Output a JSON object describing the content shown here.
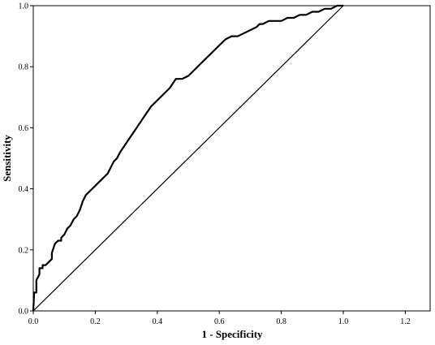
{
  "chart_data": {
    "type": "line",
    "title": "",
    "xlabel": "1 - Specificity",
    "ylabel": "Sensitivity",
    "xlim": [
      0,
      1.28
    ],
    "ylim": [
      0,
      1.0
    ],
    "x_ticks": [
      "0.0",
      "0.2",
      "0.4",
      "0.6",
      "0.8",
      "1.0",
      "1.2"
    ],
    "y_ticks": [
      "0.0",
      "0.2",
      "0.4",
      "0.6",
      "0.8",
      "1.0"
    ],
    "grid": false,
    "legend": "none",
    "series": [
      {
        "role": "roc-curve",
        "color": "#000000",
        "x": [
          0.0,
          0.003,
          0.01,
          0.01,
          0.02,
          0.02,
          0.03,
          0.03,
          0.04,
          0.05,
          0.06,
          0.06,
          0.07,
          0.08,
          0.09,
          0.09,
          0.1,
          0.11,
          0.12,
          0.13,
          0.14,
          0.15,
          0.16,
          0.17,
          0.18,
          0.19,
          0.2,
          0.22,
          0.24,
          0.25,
          0.26,
          0.27,
          0.28,
          0.3,
          0.32,
          0.34,
          0.36,
          0.38,
          0.4,
          0.42,
          0.44,
          0.46,
          0.48,
          0.5,
          0.52,
          0.54,
          0.55,
          0.56,
          0.57,
          0.58,
          0.6,
          0.62,
          0.64,
          0.66,
          0.68,
          0.7,
          0.72,
          0.73,
          0.74,
          0.76,
          0.78,
          0.8,
          0.82,
          0.84,
          0.86,
          0.88,
          0.9,
          0.92,
          0.94,
          0.96,
          0.98,
          1.0
        ],
        "y": [
          0.0,
          0.06,
          0.06,
          0.1,
          0.12,
          0.14,
          0.14,
          0.15,
          0.15,
          0.16,
          0.17,
          0.19,
          0.22,
          0.23,
          0.23,
          0.24,
          0.25,
          0.27,
          0.28,
          0.3,
          0.31,
          0.33,
          0.36,
          0.38,
          0.39,
          0.4,
          0.41,
          0.43,
          0.45,
          0.47,
          0.49,
          0.5,
          0.52,
          0.55,
          0.58,
          0.61,
          0.64,
          0.67,
          0.69,
          0.71,
          0.73,
          0.76,
          0.76,
          0.77,
          0.79,
          0.81,
          0.82,
          0.83,
          0.84,
          0.85,
          0.87,
          0.89,
          0.9,
          0.9,
          0.91,
          0.92,
          0.93,
          0.94,
          0.94,
          0.95,
          0.95,
          0.95,
          0.96,
          0.96,
          0.97,
          0.97,
          0.98,
          0.98,
          0.99,
          0.99,
          1.0,
          1.0
        ]
      },
      {
        "role": "reference-line",
        "color": "#000000",
        "x": [
          0.0,
          1.0
        ],
        "y": [
          0.0,
          1.0
        ]
      }
    ]
  }
}
